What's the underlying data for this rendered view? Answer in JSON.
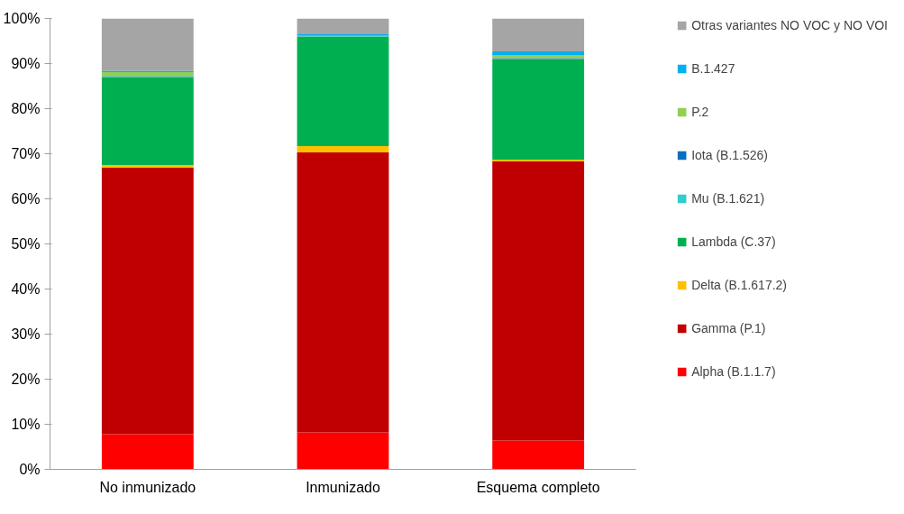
{
  "chart_data": {
    "type": "bar",
    "stacked": true,
    "categories": [
      "No inmunizado",
      "Inmunizado",
      "Esquema completo"
    ],
    "series": [
      {
        "name": "Alpha (B.1.1.7)",
        "color": "#ff0000",
        "values": [
          7.8,
          8.2,
          6.4
        ]
      },
      {
        "name": "Gamma (P.1)",
        "color": "#c00000",
        "values": [
          59.1,
          62.1,
          61.9
        ]
      },
      {
        "name": "Delta (B.1.617.2)",
        "color": "#ffc000",
        "values": [
          0.6,
          1.4,
          0.4
        ]
      },
      {
        "name": "Lambda (C.37)",
        "color": "#00b050",
        "values": [
          19.4,
          24.3,
          22.2
        ]
      },
      {
        "name": "Mu (B.1.621)",
        "color": "#33cccc",
        "values": [
          0.2,
          0.3,
          0.1
        ]
      },
      {
        "name": "Iota (B.1.526)",
        "color": "#0070c0",
        "values": [
          0.1,
          0,
          0.2
        ]
      },
      {
        "name": "P.2",
        "color": "#92d050",
        "values": [
          0.9,
          0,
          0.6
        ]
      },
      {
        "name": "B.1.427",
        "color": "#00b0f0",
        "values": [
          0.3,
          0.2,
          0.9
        ]
      },
      {
        "name": "Otras variantes NO VOC y NO VOI",
        "color": "#a5a5a5",
        "values": [
          11.6,
          3.5,
          7.3
        ]
      }
    ],
    "ylim": [
      0,
      100
    ],
    "yticks": [
      {
        "value": 0,
        "label": "0%"
      },
      {
        "value": 10,
        "label": "10%"
      },
      {
        "value": 20,
        "label": "20%"
      },
      {
        "value": 30,
        "label": "30%"
      },
      {
        "value": 40,
        "label": "40%"
      },
      {
        "value": 50,
        "label": "50%"
      },
      {
        "value": 60,
        "label": "60%"
      },
      {
        "value": 70,
        "label": "70%"
      },
      {
        "value": 80,
        "label": "80%"
      },
      {
        "value": 90,
        "label": "90%"
      },
      {
        "value": 100,
        "label": "100%"
      }
    ],
    "grid": false,
    "legend": "right"
  }
}
